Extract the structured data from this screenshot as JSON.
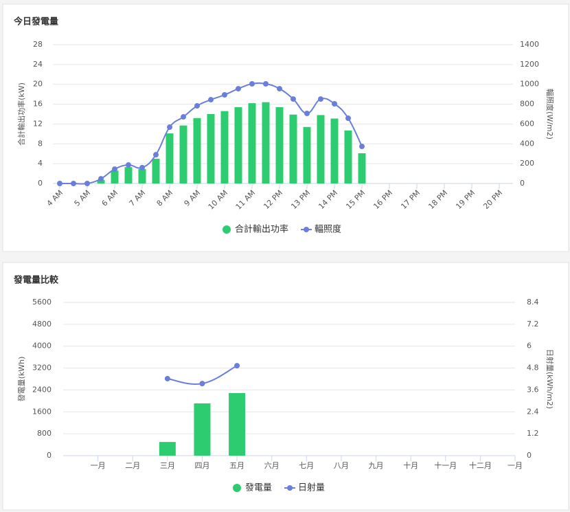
{
  "chart_data": [
    {
      "type": "bar",
      "title": "今日發電量",
      "categories": [
        "4 AM",
        null,
        "5 AM",
        null,
        "6 AM",
        null,
        "7 AM",
        null,
        "8 AM",
        null,
        "9 AM",
        null,
        "10 AM",
        null,
        "11 AM",
        null,
        "12 PM",
        null,
        "13 PM",
        null,
        "14 PM",
        null,
        "15 PM",
        null,
        "16 PM",
        null,
        "17 PM",
        null,
        "18 PM",
        null,
        "19 PM",
        null,
        "20 PM"
      ],
      "y_label": "合計輸出功率(kW)",
      "y2_label": "輻照度(W/m2)",
      "ylim": [
        0,
        28
      ],
      "yticks": [
        0,
        4,
        8,
        12,
        16,
        20,
        24,
        28
      ],
      "y2lim": [
        0,
        1400
      ],
      "y2ticks": [
        0,
        200,
        400,
        600,
        800,
        1000,
        1200,
        1400
      ],
      "grid": true,
      "legend": "bottom",
      "series": [
        {
          "name": "合計輸出功率",
          "type": "bar",
          "color": "#2ecc71",
          "values": [
            null,
            0,
            0,
            0.7,
            2.6,
            3.3,
            2.9,
            5.0,
            10.1,
            11.7,
            13.2,
            14.0,
            14.6,
            15.4,
            16.2,
            16.4,
            15.4,
            13.9,
            11.4,
            13.8,
            13.1,
            10.7,
            6.1,
            null,
            null,
            null,
            null,
            null,
            null,
            null,
            null,
            null,
            null
          ]
        },
        {
          "name": "輻照度",
          "type": "line",
          "axis": "y2",
          "color": "#6a7fdb",
          "values": [
            0,
            0,
            0,
            48,
            145,
            187,
            160,
            290,
            568,
            672,
            783,
            845,
            894,
            956,
            1005,
            1005,
            956,
            852,
            707,
            852,
            804,
            658,
            374,
            null,
            null,
            null,
            null,
            null,
            null,
            null,
            null,
            null,
            null
          ]
        }
      ]
    },
    {
      "type": "bar",
      "title": "發電量比較",
      "categories": [
        "一月",
        "二月",
        "三月",
        "四月",
        "五月",
        "六月",
        "七月",
        "八月",
        "九月",
        "十月",
        "十一月",
        "十二月",
        "一月"
      ],
      "y_label": "發電量(kWh)",
      "y2_label": "日射量(kWh/m2)",
      "ylim": [
        0,
        5600
      ],
      "yticks": [
        0,
        800,
        1600,
        2400,
        3200,
        4000,
        4800,
        5600
      ],
      "y2lim": [
        0,
        8.4
      ],
      "y2ticks": [
        0,
        1.2,
        2.4,
        3.6,
        4.8,
        6,
        7.2,
        8.4
      ],
      "grid": true,
      "legend": "bottom",
      "series": [
        {
          "name": "發電量",
          "type": "bar",
          "color": "#2ecc71",
          "values": [
            null,
            null,
            500,
            1910,
            2285,
            null,
            null,
            null,
            null,
            null,
            null,
            null,
            null
          ]
        },
        {
          "name": "日射量",
          "type": "line",
          "axis": "y2",
          "color": "#6a7fdb",
          "values": [
            null,
            null,
            4.22,
            3.95,
            4.93,
            null,
            null,
            null,
            null,
            null,
            null,
            null,
            null
          ]
        }
      ]
    }
  ]
}
